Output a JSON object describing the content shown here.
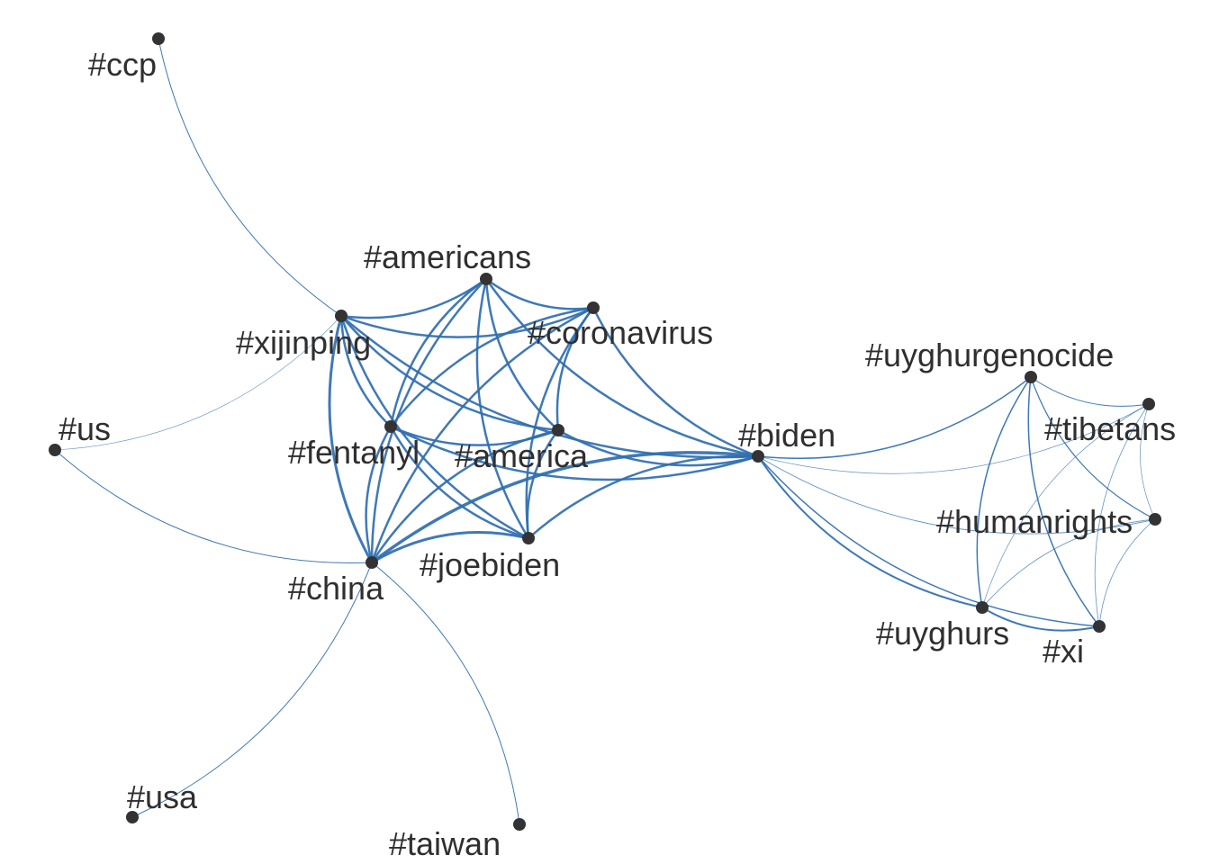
{
  "colors": {
    "edge": "#2f6eb0",
    "node": "#333333",
    "label": "#2f2f2f",
    "background": "#ffffff"
  },
  "nodes": [
    {
      "id": "ccp",
      "label": "#ccp"
    },
    {
      "id": "xijinping",
      "label": "#xijinping"
    },
    {
      "id": "americans",
      "label": "#americans"
    },
    {
      "id": "coronavirus",
      "label": "#coronavirus"
    },
    {
      "id": "us",
      "label": "#us"
    },
    {
      "id": "fentanyl",
      "label": "#fentanyl"
    },
    {
      "id": "america",
      "label": "#america"
    },
    {
      "id": "biden",
      "label": "#biden"
    },
    {
      "id": "joebiden",
      "label": "#joebiden"
    },
    {
      "id": "china",
      "label": "#china"
    },
    {
      "id": "usa",
      "label": "#usa"
    },
    {
      "id": "taiwan",
      "label": "#taiwan"
    },
    {
      "id": "uyghurgenocide",
      "label": "#uyghurgenocide"
    },
    {
      "id": "tibetans",
      "label": "#tibetans"
    },
    {
      "id": "humanrights",
      "label": "#humanrights"
    },
    {
      "id": "uyghurs",
      "label": "#uyghurs"
    },
    {
      "id": "xi",
      "label": "#xi"
    }
  ],
  "edges": [
    {
      "source": "ccp",
      "target": "xijinping",
      "weight": 1
    },
    {
      "source": "us",
      "target": "xijinping",
      "weight": 0.6
    },
    {
      "source": "us",
      "target": "china",
      "weight": 1
    },
    {
      "source": "usa",
      "target": "china",
      "weight": 1
    },
    {
      "source": "taiwan",
      "target": "china",
      "weight": 1
    },
    {
      "source": "xijinping",
      "target": "americans",
      "weight": 2.5
    },
    {
      "source": "xijinping",
      "target": "coronavirus",
      "weight": 2.5
    },
    {
      "source": "xijinping",
      "target": "fentanyl",
      "weight": 2.5
    },
    {
      "source": "xijinping",
      "target": "america",
      "weight": 2.5
    },
    {
      "source": "xijinping",
      "target": "biden",
      "weight": 2.5
    },
    {
      "source": "xijinping",
      "target": "joebiden",
      "weight": 2.5
    },
    {
      "source": "xijinping",
      "target": "china",
      "weight": 3
    },
    {
      "source": "americans",
      "target": "coronavirus",
      "weight": 2.5
    },
    {
      "source": "americans",
      "target": "fentanyl",
      "weight": 2.5
    },
    {
      "source": "americans",
      "target": "america",
      "weight": 2.5
    },
    {
      "source": "americans",
      "target": "biden",
      "weight": 2.5
    },
    {
      "source": "americans",
      "target": "joebiden",
      "weight": 2.5
    },
    {
      "source": "americans",
      "target": "china",
      "weight": 2.5
    },
    {
      "source": "coronavirus",
      "target": "fentanyl",
      "weight": 2.5
    },
    {
      "source": "coronavirus",
      "target": "america",
      "weight": 2.5
    },
    {
      "source": "coronavirus",
      "target": "biden",
      "weight": 2.5
    },
    {
      "source": "coronavirus",
      "target": "joebiden",
      "weight": 2.5
    },
    {
      "source": "coronavirus",
      "target": "china",
      "weight": 2.5
    },
    {
      "source": "fentanyl",
      "target": "america",
      "weight": 2.5
    },
    {
      "source": "fentanyl",
      "target": "biden",
      "weight": 2.5
    },
    {
      "source": "fentanyl",
      "target": "joebiden",
      "weight": 2.5
    },
    {
      "source": "fentanyl",
      "target": "china",
      "weight": 2.5
    },
    {
      "source": "america",
      "target": "biden",
      "weight": 2.5
    },
    {
      "source": "america",
      "target": "joebiden",
      "weight": 2.5
    },
    {
      "source": "america",
      "target": "china",
      "weight": 2.5
    },
    {
      "source": "biden",
      "target": "joebiden",
      "weight": 2.5
    },
    {
      "source": "biden",
      "target": "china",
      "weight": 3.5
    },
    {
      "source": "joebiden",
      "target": "china",
      "weight": 3
    },
    {
      "source": "biden",
      "target": "uyghurgenocide",
      "weight": 1.5
    },
    {
      "source": "biden",
      "target": "tibetans",
      "weight": 0.7
    },
    {
      "source": "biden",
      "target": "humanrights",
      "weight": 0.9
    },
    {
      "source": "biden",
      "target": "uyghurs",
      "weight": 2
    },
    {
      "source": "biden",
      "target": "xi",
      "weight": 1.5
    },
    {
      "source": "uyghurgenocide",
      "target": "tibetans",
      "weight": 1
    },
    {
      "source": "uyghurgenocide",
      "target": "humanrights",
      "weight": 1.2
    },
    {
      "source": "uyghurgenocide",
      "target": "uyghurs",
      "weight": 1.5
    },
    {
      "source": "uyghurgenocide",
      "target": "xi",
      "weight": 1.5
    },
    {
      "source": "tibetans",
      "target": "humanrights",
      "weight": 0.7
    },
    {
      "source": "tibetans",
      "target": "uyghurs",
      "weight": 0.7
    },
    {
      "source": "tibetans",
      "target": "xi",
      "weight": 0.8
    },
    {
      "source": "humanrights",
      "target": "uyghurs",
      "weight": 0.8
    },
    {
      "source": "humanrights",
      "target": "xi",
      "weight": 0.8
    },
    {
      "source": "uyghurs",
      "target": "xi",
      "weight": 2
    }
  ]
}
